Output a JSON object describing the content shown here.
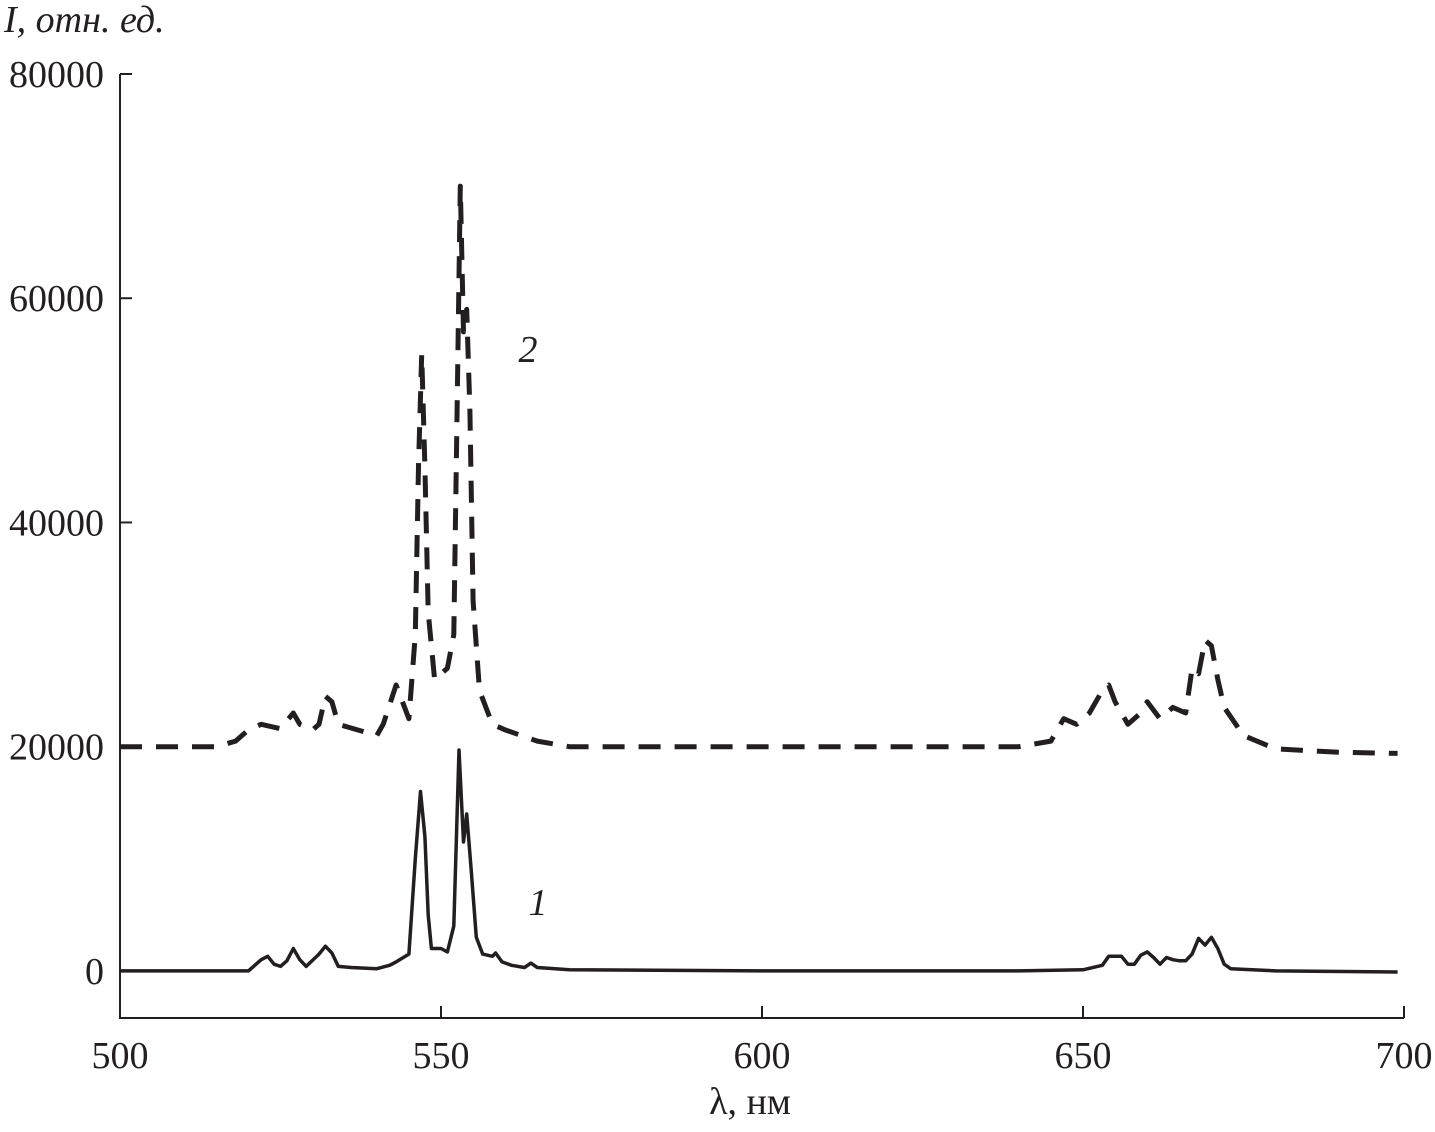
{
  "chart_data": {
    "type": "line",
    "y_label": "I, отн. ед.",
    "x_label": "λ, нм",
    "xlim": [
      500,
      700
    ],
    "xticks": [
      500,
      550,
      600,
      650,
      700
    ],
    "ylim": [
      -4200,
      80000
    ],
    "yticks": [
      0,
      20000,
      40000,
      60000,
      80000
    ],
    "series": [
      {
        "name": "1",
        "color": "#231f20",
        "dashed": false,
        "x": [
          500,
          510,
          520,
          521,
          522,
          523,
          524,
          525,
          526,
          527,
          528,
          529,
          531,
          532,
          533,
          534,
          536,
          540,
          542,
          543,
          545,
          546,
          546.8,
          547.5,
          548,
          548.5,
          550,
          551,
          552,
          552.8,
          553.5,
          554,
          554.7,
          555.5,
          556.5,
          558,
          558.5,
          559.5,
          561,
          563,
          564,
          565,
          570,
          600,
          640,
          650,
          653,
          654,
          656,
          657,
          658,
          659,
          660,
          661,
          662,
          663,
          664,
          665,
          666,
          667,
          668,
          669,
          670,
          671,
          672,
          673,
          680,
          699
        ],
        "values": [
          0,
          0,
          0,
          500,
          1000,
          1300,
          600,
          400,
          900,
          2000,
          1000,
          400,
          1500,
          2200,
          1600,
          400,
          300,
          200,
          500,
          800,
          1500,
          10000,
          16000,
          12000,
          5000,
          2000,
          2000,
          1700,
          4000,
          19700,
          11500,
          14000,
          9000,
          3000,
          1500,
          1300,
          1600,
          800,
          500,
          300,
          700,
          300,
          100,
          0,
          0,
          100,
          500,
          1300,
          1300,
          600,
          600,
          1400,
          1700,
          1200,
          600,
          1200,
          1000,
          900,
          900,
          1500,
          2900,
          2300,
          3000,
          2000,
          600,
          200,
          0,
          -100
        ]
      },
      {
        "name": "2",
        "color": "#231f20",
        "dashed": true,
        "x": [
          500,
          515,
          518,
          520,
          522,
          525,
          527,
          528,
          530,
          531,
          532,
          533,
          534,
          537,
          540,
          541,
          543,
          544,
          545,
          546,
          546.5,
          547,
          547.5,
          548,
          549,
          550,
          551,
          552,
          552.5,
          553,
          553.5,
          554,
          554.5,
          555,
          556,
          558,
          560,
          565,
          570,
          600,
          640,
          645,
          647,
          649,
          651,
          653,
          654,
          655,
          657,
          659,
          660,
          662,
          664,
          666,
          667,
          668,
          669,
          670,
          671,
          672,
          675,
          680,
          690,
          699
        ],
        "values": [
          20000,
          20000,
          20500,
          21500,
          22000,
          21600,
          23000,
          22000,
          21500,
          22000,
          24500,
          24000,
          22000,
          21500,
          21000,
          22000,
          25500,
          24000,
          22500,
          30000,
          45000,
          55000,
          45000,
          32000,
          26000,
          26500,
          27000,
          30000,
          50000,
          70000,
          57000,
          59000,
          50000,
          33000,
          25000,
          22000,
          21500,
          20500,
          20000,
          20000,
          20000,
          20500,
          22500,
          22000,
          23000,
          25000,
          25500,
          24000,
          22000,
          23000,
          24000,
          22500,
          23500,
          23000,
          27000,
          26500,
          29500,
          29000,
          26000,
          23500,
          21000,
          19800,
          19500,
          19400
        ]
      }
    ]
  }
}
